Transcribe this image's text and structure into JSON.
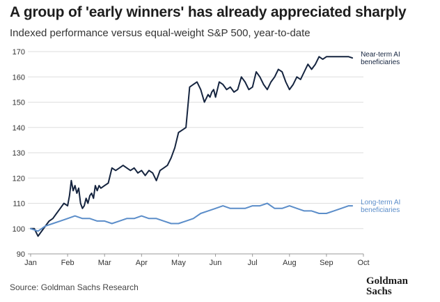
{
  "title": "A group of 'early winners' has already appreciated sharply",
  "subtitle": "Indexed performance versus equal-weight S&P 500, year-to-date",
  "source": "Source: Goldman Sachs Research",
  "logo": {
    "line1": "Goldman",
    "line2": "Sachs"
  },
  "chart_data": {
    "type": "line",
    "title": "A group of 'early winners' has already appreciated sharply",
    "subtitle": "Indexed performance versus equal-weight S&P 500, year-to-date",
    "x_ticks": [
      "Jan",
      "Feb",
      "Mar",
      "Apr",
      "May",
      "Jun",
      "Jul",
      "Aug",
      "Sep",
      "Oct"
    ],
    "xlim": [
      0,
      9
    ],
    "ylim": [
      90,
      170
    ],
    "y_ticks": [
      90,
      100,
      110,
      120,
      130,
      140,
      150,
      160,
      170
    ],
    "grid": "horizontal",
    "legend": "inline labels at right end of lines",
    "series": [
      {
        "name": "Near-term AI beneficiaries",
        "color": "#15243f",
        "x": [
          0,
          0.1,
          0.2,
          0.3,
          0.4,
          0.5,
          0.6,
          0.7,
          0.8,
          0.9,
          1.0,
          1.05,
          1.1,
          1.15,
          1.2,
          1.25,
          1.3,
          1.35,
          1.4,
          1.45,
          1.5,
          1.55,
          1.6,
          1.65,
          1.7,
          1.75,
          1.8,
          1.85,
          1.9,
          2.0,
          2.1,
          2.2,
          2.3,
          2.4,
          2.5,
          2.6,
          2.7,
          2.8,
          2.9,
          3.0,
          3.1,
          3.2,
          3.3,
          3.4,
          3.5,
          3.6,
          3.7,
          3.8,
          3.9,
          4.0,
          4.1,
          4.2,
          4.3,
          4.4,
          4.5,
          4.6,
          4.7,
          4.8,
          4.85,
          4.9,
          4.95,
          5.0,
          5.1,
          5.2,
          5.3,
          5.4,
          5.5,
          5.6,
          5.7,
          5.8,
          5.9,
          6.0,
          6.1,
          6.2,
          6.3,
          6.4,
          6.5,
          6.6,
          6.7,
          6.8,
          6.9,
          7.0,
          7.1,
          7.2,
          7.3,
          7.4,
          7.5,
          7.6,
          7.7,
          7.8,
          7.9,
          8.0,
          8.1,
          8.2,
          8.3,
          8.4,
          8.5,
          8.6,
          8.7
        ],
        "values": [
          100,
          100,
          97,
          99,
          101,
          103,
          104,
          106,
          108,
          110,
          109,
          113,
          119,
          115,
          117,
          114,
          116,
          110,
          108,
          109,
          112,
          110,
          113,
          114,
          112,
          117,
          115,
          117,
          116,
          117,
          118,
          124,
          123,
          124,
          125,
          124,
          123,
          124,
          122,
          123,
          121,
          123,
          122,
          119,
          123,
          124,
          125,
          128,
          132,
          138,
          139,
          140,
          156,
          157,
          158,
          155,
          150,
          153,
          152,
          154,
          155,
          152,
          158,
          157,
          155,
          156,
          154,
          155,
          160,
          158,
          155,
          156,
          162,
          160,
          157,
          155,
          158,
          160,
          163,
          162,
          158,
          155,
          157,
          160,
          159,
          162,
          165,
          163,
          165,
          168,
          167,
          168,
          168,
          168,
          168,
          168,
          168,
          168,
          167.5
        ]
      },
      {
        "name": "Long-term AI beneficiaries",
        "color": "#5b8dc9",
        "x": [
          0,
          0.2,
          0.4,
          0.6,
          0.8,
          1.0,
          1.2,
          1.4,
          1.6,
          1.8,
          2.0,
          2.2,
          2.4,
          2.6,
          2.8,
          3.0,
          3.2,
          3.4,
          3.6,
          3.8,
          4.0,
          4.2,
          4.4,
          4.6,
          4.8,
          5.0,
          5.2,
          5.4,
          5.6,
          5.8,
          6.0,
          6.2,
          6.4,
          6.6,
          6.8,
          7.0,
          7.2,
          7.4,
          7.6,
          7.8,
          8.0,
          8.2,
          8.4,
          8.6,
          8.7
        ],
        "values": [
          100,
          99,
          101,
          102,
          103,
          104,
          105,
          104,
          104,
          103,
          103,
          102,
          103,
          104,
          104,
          105,
          104,
          104,
          103,
          102,
          102,
          103,
          104,
          106,
          107,
          108,
          109,
          108,
          108,
          108,
          109,
          109,
          110,
          108,
          108,
          109,
          108,
          107,
          107,
          106,
          106,
          107,
          108,
          109,
          109
        ]
      }
    ]
  }
}
